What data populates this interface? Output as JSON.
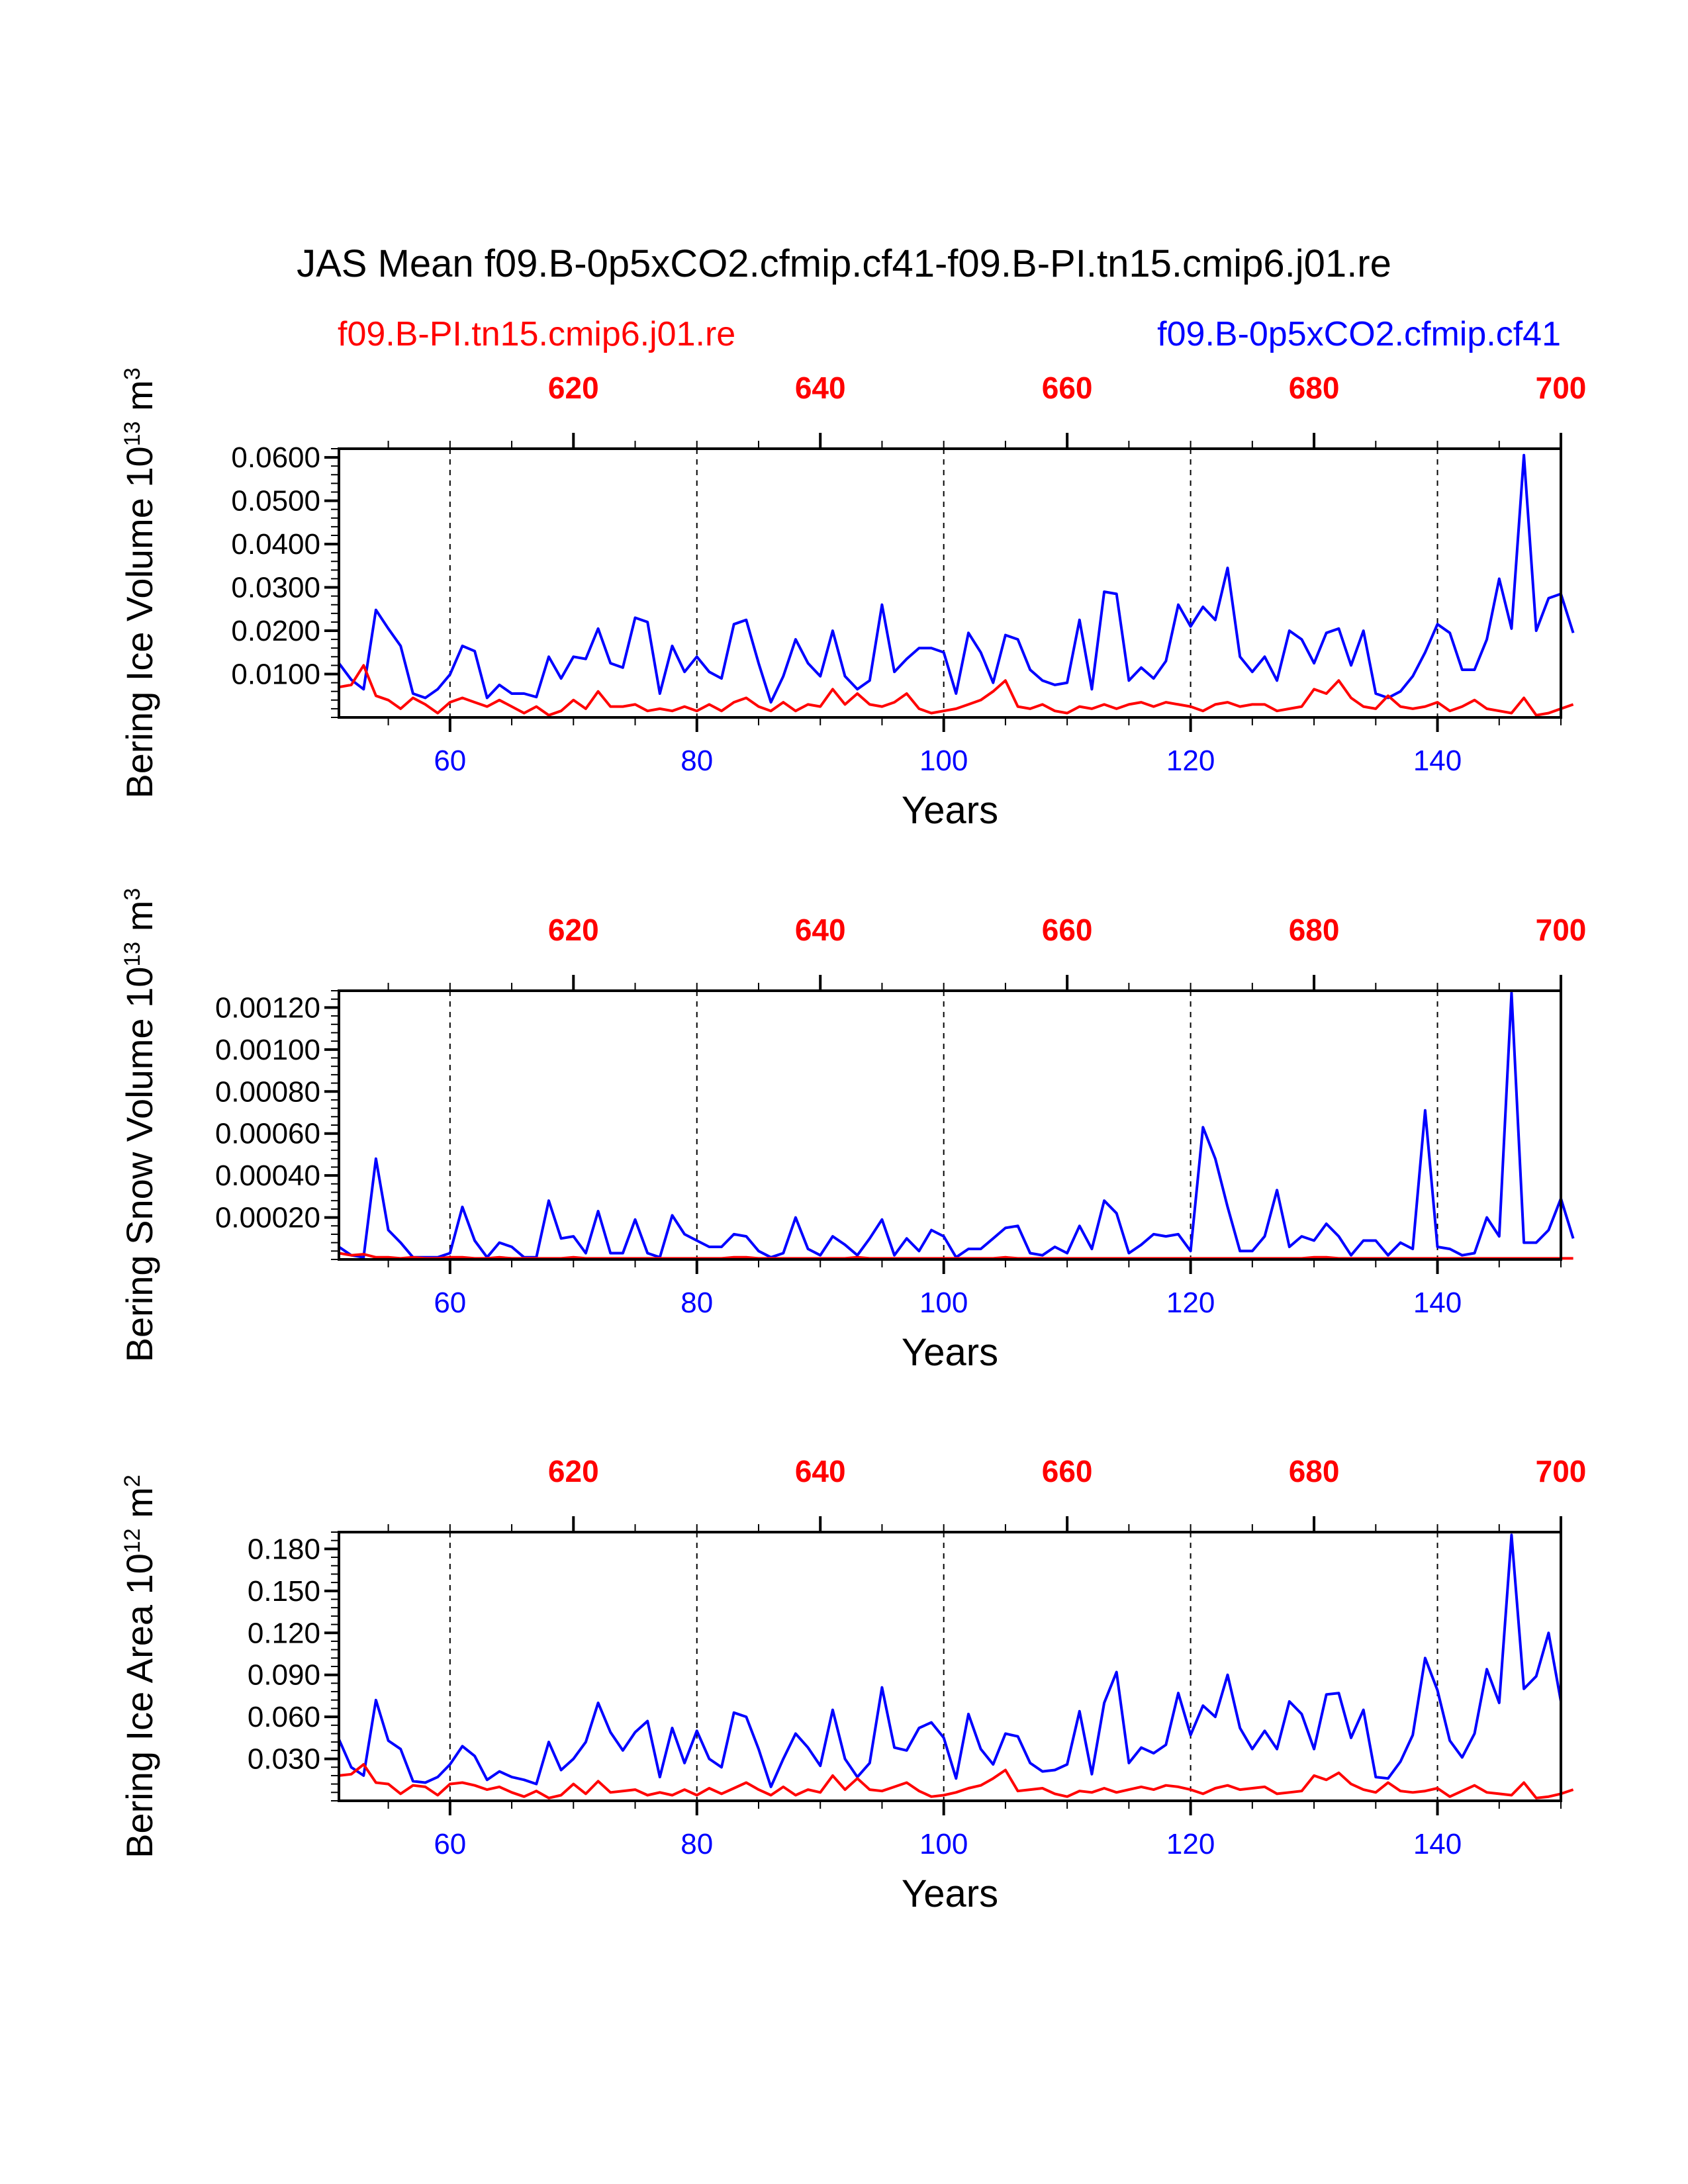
{
  "title": "JAS Mean f09.B-0p5xCO2.cfmip.cf41-f09.B-PI.tn15.cmip6.j01.re",
  "legend": {
    "left": {
      "label": "f09.B-PI.tn15.cmip6.j01.re",
      "color": "#ff0000"
    },
    "right": {
      "label": "f09.B-0p5xCO2.cfmip.cf41",
      "color": "#0000ff"
    }
  },
  "colors": {
    "ctrl": "#ff0000",
    "exp": "#0000ff",
    "axis": "#000000"
  },
  "chart_data": [
    {
      "type": "line",
      "ylabel_main": "Bering Ice Volume 10",
      "ylabel_exp": "13",
      "ylabel_unit": " m",
      "ylabel_unit_exp": "3",
      "xlabel": "Years",
      "xlim": [
        51,
        150
      ],
      "ylim": [
        0,
        0.062
      ],
      "yticks": [
        {
          "v": 0.01,
          "label": "0.0100"
        },
        {
          "v": 0.02,
          "label": "0.0200"
        },
        {
          "v": 0.03,
          "label": "0.0300"
        },
        {
          "v": 0.04,
          "label": "0.0400"
        },
        {
          "v": 0.05,
          "label": "0.0500"
        },
        {
          "v": 0.06,
          "label": "0.0600"
        }
      ],
      "yminor_step": 0.002,
      "xticks": [
        {
          "v": 60,
          "label": "60"
        },
        {
          "v": 80,
          "label": "80"
        },
        {
          "v": 100,
          "label": "100"
        },
        {
          "v": 120,
          "label": "120"
        },
        {
          "v": 140,
          "label": "140"
        }
      ],
      "top_ticks": [
        {
          "v": 620,
          "label": "620"
        },
        {
          "v": 640,
          "label": "640"
        },
        {
          "v": 660,
          "label": "660"
        },
        {
          "v": 680,
          "label": "680"
        },
        {
          "v": 700,
          "label": "700"
        }
      ],
      "top_xlim": [
        601,
        700
      ],
      "vlines": [
        60,
        80,
        100,
        120,
        140
      ],
      "series": [
        {
          "name": "f09.B-0p5xCO2.cfmip.cf41",
          "color": "#0000ff",
          "x0": 51,
          "values": [
            0.0125,
            0.0087,
            0.0065,
            0.0248,
            0.0205,
            0.0165,
            0.0055,
            0.0045,
            0.0065,
            0.0099,
            0.0165,
            0.0153,
            0.0045,
            0.0075,
            0.0055,
            0.0055,
            0.0047,
            0.014,
            0.009,
            0.014,
            0.0135,
            0.0205,
            0.0125,
            0.0115,
            0.023,
            0.022,
            0.0055,
            0.0165,
            0.0105,
            0.014,
            0.0105,
            0.009,
            0.0215,
            0.0225,
            0.0125,
            0.0035,
            0.0095,
            0.018,
            0.0125,
            0.0095,
            0.02,
            0.0095,
            0.0065,
            0.0085,
            0.026,
            0.0105,
            0.0135,
            0.016,
            0.016,
            0.015,
            0.0055,
            0.0195,
            0.015,
            0.008,
            0.019,
            0.018,
            0.011,
            0.0085,
            0.0075,
            0.008,
            0.0225,
            0.0065,
            0.029,
            0.0285,
            0.0085,
            0.0115,
            0.009,
            0.013,
            0.026,
            0.021,
            0.0255,
            0.0225,
            0.0345,
            0.014,
            0.0105,
            0.014,
            0.0085,
            0.02,
            0.018,
            0.0125,
            0.0195,
            0.0205,
            0.012,
            0.02,
            0.0055,
            0.0045,
            0.006,
            0.0095,
            0.015,
            0.0215,
            0.0195,
            0.011,
            0.011,
            0.018,
            0.032,
            0.0205,
            0.0605,
            0.02,
            0.0275,
            0.0285,
            0.0195
          ]
        },
        {
          "name": "f09.B-PI.tn15.cmip6.j01.re",
          "color": "#ff0000",
          "x0": 51,
          "values": [
            0.007,
            0.0075,
            0.012,
            0.005,
            0.004,
            0.002,
            0.0045,
            0.003,
            0.001,
            0.0035,
            0.0045,
            0.0035,
            0.0025,
            0.004,
            0.0025,
            0.001,
            0.0025,
            0.0005,
            0.0015,
            0.004,
            0.002,
            0.006,
            0.0025,
            0.0025,
            0.003,
            0.0015,
            0.002,
            0.0015,
            0.0025,
            0.0015,
            0.003,
            0.0015,
            0.0035,
            0.0045,
            0.0025,
            0.0015,
            0.0035,
            0.0015,
            0.003,
            0.0025,
            0.0065,
            0.003,
            0.0055,
            0.003,
            0.0025,
            0.0035,
            0.0055,
            0.002,
            0.001,
            0.0015,
            0.002,
            0.003,
            0.004,
            0.006,
            0.0085,
            0.0025,
            0.002,
            0.003,
            0.0015,
            0.001,
            0.0025,
            0.002,
            0.003,
            0.002,
            0.003,
            0.0035,
            0.0025,
            0.0035,
            0.003,
            0.0025,
            0.0015,
            0.003,
            0.0035,
            0.0025,
            0.003,
            0.003,
            0.0015,
            0.002,
            0.0025,
            0.0065,
            0.0055,
            0.0085,
            0.0045,
            0.0025,
            0.002,
            0.005,
            0.0025,
            0.002,
            0.0025,
            0.0035,
            0.0015,
            0.0025,
            0.004,
            0.002,
            0.0015,
            0.001,
            0.0045,
            0.0005,
            0.001,
            0.002,
            0.003
          ]
        }
      ]
    },
    {
      "type": "line",
      "ylabel_main": "Bering Snow Volume 10",
      "ylabel_exp": "13",
      "ylabel_unit": " m",
      "ylabel_unit_exp": "3",
      "xlabel": "Years",
      "xlim": [
        51,
        150
      ],
      "ylim": [
        0,
        0.00128
      ],
      "yticks": [
        {
          "v": 0.0002,
          "label": "0.00020"
        },
        {
          "v": 0.0004,
          "label": "0.00040"
        },
        {
          "v": 0.0006,
          "label": "0.00060"
        },
        {
          "v": 0.0008,
          "label": "0.00080"
        },
        {
          "v": 0.001,
          "label": "0.00100"
        },
        {
          "v": 0.0012,
          "label": "0.00120"
        }
      ],
      "yminor_step": 4e-05,
      "xticks": [
        {
          "v": 60,
          "label": "60"
        },
        {
          "v": 80,
          "label": "80"
        },
        {
          "v": 100,
          "label": "100"
        },
        {
          "v": 120,
          "label": "120"
        },
        {
          "v": 140,
          "label": "140"
        }
      ],
      "top_ticks": [
        {
          "v": 620,
          "label": "620"
        },
        {
          "v": 640,
          "label": "640"
        },
        {
          "v": 660,
          "label": "660"
        },
        {
          "v": 680,
          "label": "680"
        },
        {
          "v": 700,
          "label": "700"
        }
      ],
      "top_xlim": [
        601,
        700
      ],
      "vlines": [
        60,
        80,
        100,
        120,
        140
      ],
      "series": [
        {
          "name": "f09.B-0p5xCO2.cfmip.cf41",
          "color": "#0000ff",
          "x0": 51,
          "values": [
            6e-05,
            2e-05,
            1e-05,
            0.00048,
            0.00014,
            8e-05,
            1e-05,
            1e-05,
            1e-05,
            3e-05,
            0.00025,
            9e-05,
            1e-05,
            8e-05,
            6e-05,
            1e-05,
            1e-05,
            0.00028,
            0.0001,
            0.00011,
            3e-05,
            0.00023,
            3e-05,
            3e-05,
            0.00019,
            3e-05,
            1e-05,
            0.00021,
            0.00012,
            9e-05,
            6e-05,
            6e-05,
            0.00012,
            0.00011,
            4e-05,
            1e-05,
            3e-05,
            0.0002,
            5e-05,
            2e-05,
            0.00011,
            7e-05,
            2e-05,
            0.0001,
            0.00019,
            2e-05,
            0.0001,
            4e-05,
            0.00014,
            0.00011,
            1e-05,
            5e-05,
            5e-05,
            0.0001,
            0.00015,
            0.00016,
            3e-05,
            2e-05,
            6e-05,
            3e-05,
            0.00016,
            5e-05,
            0.00028,
            0.00022,
            3e-05,
            7e-05,
            0.00012,
            0.00011,
            0.00012,
            4e-05,
            0.00063,
            0.00048,
            0.00025,
            4e-05,
            4e-05,
            0.00011,
            0.00033,
            6e-05,
            0.00011,
            9e-05,
            0.00017,
            0.00011,
            2e-05,
            9e-05,
            9e-05,
            2e-05,
            8e-05,
            5e-05,
            0.00071,
            6e-05,
            5e-05,
            2e-05,
            3e-05,
            0.0002,
            0.00011,
            0.00127,
            8e-05,
            8e-05,
            0.00014,
            0.00029,
            0.0001
          ]
        },
        {
          "name": "f09.B-PI.tn15.cmip6.j01.re",
          "color": "#ff0000",
          "x0": 51,
          "values": [
            3e-05,
            2e-05,
            2.5e-05,
            1e-05,
            1e-05,
            5e-06,
            1e-05,
            5e-06,
            5e-06,
            1e-05,
            1e-05,
            5e-06,
            5e-06,
            1e-05,
            5e-06,
            5e-06,
            5e-06,
            5e-06,
            5e-06,
            1e-05,
            5e-06,
            5e-06,
            5e-06,
            5e-06,
            5e-06,
            5e-06,
            5e-06,
            5e-06,
            5e-06,
            5e-06,
            5e-06,
            5e-06,
            1e-05,
            1e-05,
            5e-06,
            5e-06,
            5e-06,
            5e-06,
            5e-06,
            5e-06,
            5e-06,
            5e-06,
            1e-05,
            5e-06,
            5e-06,
            5e-06,
            5e-06,
            5e-06,
            5e-06,
            5e-06,
            5e-06,
            5e-06,
            5e-06,
            5e-06,
            1e-05,
            5e-06,
            5e-06,
            5e-06,
            5e-06,
            5e-06,
            5e-06,
            5e-06,
            5e-06,
            5e-06,
            5e-06,
            5e-06,
            5e-06,
            5e-06,
            5e-06,
            5e-06,
            5e-06,
            5e-06,
            5e-06,
            5e-06,
            5e-06,
            5e-06,
            5e-06,
            5e-06,
            5e-06,
            1e-05,
            1e-05,
            5e-06,
            5e-06,
            5e-06,
            5e-06,
            5e-06,
            5e-06,
            5e-06,
            5e-06,
            5e-06,
            5e-06,
            5e-06,
            5e-06,
            5e-06,
            5e-06,
            5e-06,
            5e-06,
            5e-06,
            5e-06,
            5e-06,
            5e-06
          ]
        }
      ]
    },
    {
      "type": "line",
      "ylabel_main": "Bering Ice Area 10",
      "ylabel_exp": "12",
      "ylabel_unit": " m",
      "ylabel_unit_exp": "2",
      "xlabel": "Years",
      "xlim": [
        51,
        150
      ],
      "ylim": [
        0,
        0.192
      ],
      "yticks": [
        {
          "v": 0.03,
          "label": "0.030"
        },
        {
          "v": 0.06,
          "label": "0.060"
        },
        {
          "v": 0.09,
          "label": "0.090"
        },
        {
          "v": 0.12,
          "label": "0.120"
        },
        {
          "v": 0.15,
          "label": "0.150"
        },
        {
          "v": 0.18,
          "label": "0.180"
        }
      ],
      "yminor_step": 0.006,
      "xticks": [
        {
          "v": 60,
          "label": "60"
        },
        {
          "v": 80,
          "label": "80"
        },
        {
          "v": 100,
          "label": "100"
        },
        {
          "v": 120,
          "label": "120"
        },
        {
          "v": 140,
          "label": "140"
        }
      ],
      "top_ticks": [
        {
          "v": 620,
          "label": "620"
        },
        {
          "v": 640,
          "label": "640"
        },
        {
          "v": 660,
          "label": "660"
        },
        {
          "v": 680,
          "label": "680"
        },
        {
          "v": 700,
          "label": "700"
        }
      ],
      "top_xlim": [
        601,
        700
      ],
      "vlines": [
        60,
        80,
        100,
        120,
        140
      ],
      "series": [
        {
          "name": "f09.B-0p5xCO2.cfmip.cf41",
          "color": "#0000ff",
          "x0": 51,
          "values": [
            0.044,
            0.024,
            0.018,
            0.072,
            0.043,
            0.037,
            0.014,
            0.013,
            0.017,
            0.026,
            0.039,
            0.032,
            0.015,
            0.021,
            0.017,
            0.015,
            0.012,
            0.042,
            0.022,
            0.03,
            0.042,
            0.07,
            0.049,
            0.036,
            0.049,
            0.057,
            0.017,
            0.052,
            0.027,
            0.05,
            0.03,
            0.024,
            0.063,
            0.06,
            0.037,
            0.01,
            0.03,
            0.048,
            0.038,
            0.025,
            0.065,
            0.03,
            0.017,
            0.027,
            0.081,
            0.038,
            0.036,
            0.052,
            0.056,
            0.045,
            0.016,
            0.062,
            0.037,
            0.026,
            0.048,
            0.046,
            0.027,
            0.021,
            0.022,
            0.026,
            0.064,
            0.019,
            0.07,
            0.092,
            0.027,
            0.038,
            0.034,
            0.04,
            0.077,
            0.047,
            0.068,
            0.06,
            0.09,
            0.052,
            0.037,
            0.05,
            0.037,
            0.071,
            0.062,
            0.037,
            0.076,
            0.077,
            0.045,
            0.065,
            0.017,
            0.016,
            0.028,
            0.047,
            0.102,
            0.079,
            0.043,
            0.031,
            0.048,
            0.094,
            0.07,
            0.19,
            0.08,
            0.089,
            0.12,
            0.071
          ]
        },
        {
          "name": "f09.B-PI.tn15.cmip6.j01.re",
          "color": "#ff0000",
          "x0": 51,
          "values": [
            0.018,
            0.019,
            0.026,
            0.013,
            0.012,
            0.005,
            0.011,
            0.01,
            0.004,
            0.012,
            0.013,
            0.011,
            0.008,
            0.01,
            0.006,
            0.003,
            0.007,
            0.002,
            0.004,
            0.012,
            0.005,
            0.014,
            0.006,
            0.007,
            0.008,
            0.004,
            0.006,
            0.004,
            0.008,
            0.004,
            0.009,
            0.005,
            0.009,
            0.013,
            0.008,
            0.004,
            0.01,
            0.004,
            0.008,
            0.006,
            0.018,
            0.008,
            0.016,
            0.008,
            0.007,
            0.01,
            0.013,
            0.007,
            0.003,
            0.004,
            0.006,
            0.009,
            0.011,
            0.016,
            0.022,
            0.007,
            0.008,
            0.009,
            0.005,
            0.003,
            0.007,
            0.006,
            0.009,
            0.006,
            0.008,
            0.01,
            0.008,
            0.011,
            0.01,
            0.008,
            0.005,
            0.009,
            0.011,
            0.008,
            0.009,
            0.01,
            0.005,
            0.006,
            0.007,
            0.018,
            0.015,
            0.02,
            0.012,
            0.008,
            0.006,
            0.013,
            0.007,
            0.006,
            0.007,
            0.009,
            0.003,
            0.007,
            0.011,
            0.006,
            0.005,
            0.004,
            0.013,
            0.002,
            0.003,
            0.005,
            0.008
          ]
        }
      ]
    }
  ]
}
